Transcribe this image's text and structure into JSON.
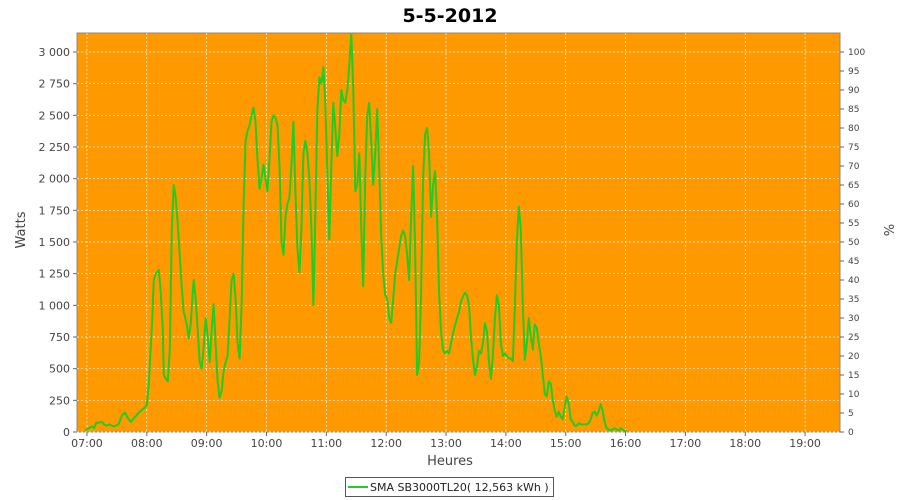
{
  "chart_data": {
    "type": "line",
    "title": "5-5-2012",
    "xlabel": "Heures",
    "ylabel": "Watts",
    "y2label": "%",
    "ylim": [
      0,
      3150
    ],
    "y2lim": [
      0,
      105
    ],
    "xlim": [
      "06:50",
      "19:35"
    ],
    "grid": true,
    "plot_background": "#ff9900",
    "x_ticks": [
      "07:00",
      "08:00",
      "09:00",
      "10:00",
      "11:00",
      "12:00",
      "13:00",
      "14:00",
      "15:00",
      "16:00",
      "17:00",
      "18:00",
      "19:00"
    ],
    "y_ticks": [
      "0",
      "250",
      "500",
      "750",
      "1 000",
      "1 250",
      "1 500",
      "1 750",
      "2 000",
      "2 250",
      "2 500",
      "2 750",
      "3 000"
    ],
    "y2_ticks": [
      "0",
      "5",
      "10",
      "15",
      "20",
      "25",
      "30",
      "35",
      "40",
      "45",
      "50",
      "55",
      "60",
      "65",
      "70",
      "75",
      "80",
      "85",
      "90",
      "95",
      "100"
    ],
    "legend_position": "bottom-center",
    "series": [
      {
        "name": "SMA SB3000TL20( 12,563 kWh )",
        "color": "#22cc22",
        "points": [
          [
            "06:58",
            10
          ],
          [
            "07:02",
            30
          ],
          [
            "07:05",
            45
          ],
          [
            "07:07",
            30
          ],
          [
            "07:09",
            70
          ],
          [
            "07:12",
            75
          ],
          [
            "07:15",
            80
          ],
          [
            "07:17",
            60
          ],
          [
            "07:20",
            50
          ],
          [
            "07:23",
            60
          ],
          [
            "07:26",
            45
          ],
          [
            "07:29",
            50
          ],
          [
            "07:32",
            65
          ],
          [
            "07:35",
            130
          ],
          [
            "07:38",
            155
          ],
          [
            "07:41",
            110
          ],
          [
            "07:44",
            80
          ],
          [
            "07:47",
            110
          ],
          [
            "07:50",
            135
          ],
          [
            "07:53",
            160
          ],
          [
            "07:56",
            180
          ],
          [
            "08:00",
            210
          ],
          [
            "08:02",
            380
          ],
          [
            "08:05",
            820
          ],
          [
            "08:07",
            1200
          ],
          [
            "08:09",
            1250
          ],
          [
            "08:12",
            1280
          ],
          [
            "08:14",
            1100
          ],
          [
            "08:16",
            800
          ],
          [
            "08:17",
            450
          ],
          [
            "08:19",
            420
          ],
          [
            "08:21",
            400
          ],
          [
            "08:23",
            650
          ],
          [
            "08:25",
            1600
          ],
          [
            "08:27",
            1950
          ],
          [
            "08:29",
            1850
          ],
          [
            "08:31",
            1650
          ],
          [
            "08:33",
            1400
          ],
          [
            "08:35",
            1150
          ],
          [
            "08:37",
            950
          ],
          [
            "08:40",
            850
          ],
          [
            "08:42",
            740
          ],
          [
            "08:44",
            850
          ],
          [
            "08:46",
            1100
          ],
          [
            "08:47",
            1200
          ],
          [
            "08:49",
            1050
          ],
          [
            "08:51",
            800
          ],
          [
            "08:53",
            550
          ],
          [
            "08:55",
            500
          ],
          [
            "08:57",
            680
          ],
          [
            "08:59",
            900
          ],
          [
            "09:01",
            750
          ],
          [
            "09:03",
            550
          ],
          [
            "09:05",
            800
          ],
          [
            "09:07",
            1010
          ],
          [
            "09:09",
            700
          ],
          [
            "09:11",
            400
          ],
          [
            "09:13",
            270
          ],
          [
            "09:15",
            320
          ],
          [
            "09:17",
            480
          ],
          [
            "09:19",
            550
          ],
          [
            "09:21",
            600
          ],
          [
            "09:23",
            900
          ],
          [
            "09:25",
            1200
          ],
          [
            "09:27",
            1250
          ],
          [
            "09:29",
            1050
          ],
          [
            "09:31",
            700
          ],
          [
            "09:33",
            580
          ],
          [
            "09:35",
            1000
          ],
          [
            "09:37",
            1800
          ],
          [
            "09:39",
            2300
          ],
          [
            "09:41",
            2380
          ],
          [
            "09:43",
            2420
          ],
          [
            "09:45",
            2500
          ],
          [
            "09:47",
            2560
          ],
          [
            "09:49",
            2450
          ],
          [
            "09:51",
            2150
          ],
          [
            "09:53",
            1920
          ],
          [
            "09:55",
            2000
          ],
          [
            "09:57",
            2110
          ],
          [
            "09:59",
            2000
          ],
          [
            "10:01",
            1900
          ],
          [
            "10:03",
            2150
          ],
          [
            "10:05",
            2450
          ],
          [
            "10:07",
            2500
          ],
          [
            "10:09",
            2480
          ],
          [
            "10:11",
            2420
          ],
          [
            "10:13",
            2100
          ],
          [
            "10:15",
            1500
          ],
          [
            "10:17",
            1400
          ],
          [
            "10:19",
            1700
          ],
          [
            "10:21",
            1800
          ],
          [
            "10:23",
            1850
          ],
          [
            "10:25",
            2100
          ],
          [
            "10:27",
            2450
          ],
          [
            "10:29",
            1900
          ],
          [
            "10:31",
            1450
          ],
          [
            "10:33",
            1260
          ],
          [
            "10:35",
            1600
          ],
          [
            "10:37",
            2200
          ],
          [
            "10:39",
            2300
          ],
          [
            "10:41",
            2200
          ],
          [
            "10:43",
            2000
          ],
          [
            "10:45",
            1600
          ],
          [
            "10:47",
            1000
          ],
          [
            "10:49",
            1750
          ],
          [
            "10:51",
            2550
          ],
          [
            "10:53",
            2800
          ],
          [
            "10:55",
            2750
          ],
          [
            "10:57",
            2880
          ],
          [
            "10:59",
            2600
          ],
          [
            "11:01",
            2050
          ],
          [
            "11:03",
            1520
          ],
          [
            "11:05",
            2100
          ],
          [
            "11:07",
            2600
          ],
          [
            "11:09",
            2400
          ],
          [
            "11:11",
            2180
          ],
          [
            "11:13",
            2350
          ],
          [
            "11:15",
            2700
          ],
          [
            "11:17",
            2620
          ],
          [
            "11:19",
            2600
          ],
          [
            "11:21",
            2700
          ],
          [
            "11:23",
            2900
          ],
          [
            "11:25",
            3140
          ],
          [
            "11:27",
            2700
          ],
          [
            "11:29",
            1900
          ],
          [
            "11:31",
            1950
          ],
          [
            "11:33",
            2200
          ],
          [
            "11:35",
            1600
          ],
          [
            "11:37",
            1150
          ],
          [
            "11:39",
            2000
          ],
          [
            "11:41",
            2500
          ],
          [
            "11:43",
            2600
          ],
          [
            "11:45",
            2300
          ],
          [
            "11:47",
            1950
          ],
          [
            "11:49",
            2200
          ],
          [
            "11:51",
            2550
          ],
          [
            "11:53",
            2080
          ],
          [
            "11:55",
            1550
          ],
          [
            "11:57",
            1250
          ],
          [
            "11:59",
            1080
          ],
          [
            "12:01",
            1050
          ],
          [
            "12:03",
            900
          ],
          [
            "12:05",
            860
          ],
          [
            "12:07",
            1050
          ],
          [
            "12:09",
            1250
          ],
          [
            "12:11",
            1350
          ],
          [
            "12:13",
            1450
          ],
          [
            "12:15",
            1550
          ],
          [
            "12:17",
            1590
          ],
          [
            "12:19",
            1550
          ],
          [
            "12:21",
            1400
          ],
          [
            "12:23",
            1200
          ],
          [
            "12:25",
            1700
          ],
          [
            "12:27",
            2100
          ],
          [
            "12:29",
            1450
          ],
          [
            "12:31",
            450
          ],
          [
            "12:33",
            550
          ],
          [
            "12:35",
            1100
          ],
          [
            "12:37",
            2000
          ],
          [
            "12:39",
            2350
          ],
          [
            "12:41",
            2400
          ],
          [
            "12:43",
            2200
          ],
          [
            "12:45",
            1700
          ],
          [
            "12:47",
            1950
          ],
          [
            "12:49",
            2060
          ],
          [
            "12:51",
            1700
          ],
          [
            "12:53",
            1100
          ],
          [
            "12:55",
            800
          ],
          [
            "12:57",
            650
          ],
          [
            "12:59",
            620
          ],
          [
            "13:01",
            640
          ],
          [
            "13:03",
            620
          ],
          [
            "13:05",
            700
          ],
          [
            "13:07",
            780
          ],
          [
            "13:09",
            840
          ],
          [
            "13:11",
            900
          ],
          [
            "13:13",
            950
          ],
          [
            "13:15",
            1030
          ],
          [
            "13:17",
            1070
          ],
          [
            "13:19",
            1100
          ],
          [
            "13:21",
            1080
          ],
          [
            "13:23",
            1000
          ],
          [
            "13:25",
            750
          ],
          [
            "13:27",
            570
          ],
          [
            "13:29",
            450
          ],
          [
            "13:31",
            520
          ],
          [
            "13:33",
            640
          ],
          [
            "13:35",
            620
          ],
          [
            "13:37",
            700
          ],
          [
            "13:39",
            860
          ],
          [
            "13:41",
            800
          ],
          [
            "13:43",
            560
          ],
          [
            "13:45",
            420
          ],
          [
            "13:47",
            600
          ],
          [
            "13:49",
            900
          ],
          [
            "13:51",
            1080
          ],
          [
            "13:53",
            1000
          ],
          [
            "13:55",
            700
          ],
          [
            "13:57",
            600
          ],
          [
            "13:59",
            620
          ],
          [
            "14:01",
            600
          ],
          [
            "14:03",
            580
          ],
          [
            "14:05",
            580
          ],
          [
            "14:07",
            560
          ],
          [
            "14:09",
            1000
          ],
          [
            "14:11",
            1500
          ],
          [
            "14:13",
            1780
          ],
          [
            "14:15",
            1600
          ],
          [
            "14:17",
            1000
          ],
          [
            "14:19",
            570
          ],
          [
            "14:21",
            700
          ],
          [
            "14:23",
            900
          ],
          [
            "14:25",
            750
          ],
          [
            "14:27",
            650
          ],
          [
            "14:29",
            850
          ],
          [
            "14:31",
            820
          ],
          [
            "14:33",
            700
          ],
          [
            "14:35",
            600
          ],
          [
            "14:37",
            450
          ],
          [
            "14:39",
            300
          ],
          [
            "14:41",
            280
          ],
          [
            "14:43",
            400
          ],
          [
            "14:45",
            380
          ],
          [
            "14:47",
            250
          ],
          [
            "14:49",
            170
          ],
          [
            "14:51",
            120
          ],
          [
            "14:53",
            160
          ],
          [
            "14:55",
            120
          ],
          [
            "14:57",
            100
          ],
          [
            "14:59",
            200
          ],
          [
            "15:01",
            280
          ],
          [
            "15:03",
            230
          ],
          [
            "15:05",
            100
          ],
          [
            "15:07",
            80
          ],
          [
            "15:09",
            50
          ],
          [
            "15:11",
            50
          ],
          [
            "15:13",
            70
          ],
          [
            "15:15",
            60
          ],
          [
            "15:17",
            60
          ],
          [
            "15:19",
            60
          ],
          [
            "15:21",
            60
          ],
          [
            "15:23",
            70
          ],
          [
            "15:25",
            100
          ],
          [
            "15:27",
            150
          ],
          [
            "15:29",
            160
          ],
          [
            "15:31",
            130
          ],
          [
            "15:33",
            160
          ],
          [
            "15:35",
            220
          ],
          [
            "15:37",
            170
          ],
          [
            "15:39",
            80
          ],
          [
            "15:41",
            30
          ],
          [
            "15:43",
            20
          ],
          [
            "15:45",
            10
          ],
          [
            "15:47",
            20
          ],
          [
            "15:49",
            30
          ],
          [
            "15:51",
            20
          ],
          [
            "15:53",
            10
          ],
          [
            "15:55",
            30
          ],
          [
            "15:57",
            20
          ],
          [
            "15:59",
            10
          ],
          [
            "16:01",
            5
          ]
        ]
      }
    ]
  }
}
